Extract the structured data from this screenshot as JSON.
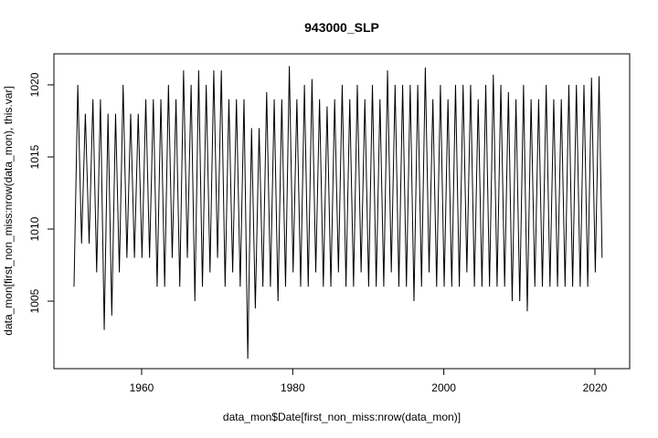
{
  "chart_data": {
    "type": "line",
    "title": "943000_SLP",
    "x_label": "data_mon$Date[first_non_miss:nrow(data_mon)]",
    "y_label": "data_mon[first_non_miss:nrow(data_mon), this.var]",
    "xlim": [
      1948.39,
      2024.6
    ],
    "ylim": [
      1000.32,
      1022.15
    ],
    "xticks": [
      1960,
      1980,
      2000,
      2020
    ],
    "yticks": [
      1005,
      1010,
      1015,
      1020
    ],
    "color": "#000000",
    "x": [
      1951.05,
      1951.55,
      1952.05,
      1952.55,
      1953.05,
      1953.55,
      1954.05,
      1954.55,
      1955.05,
      1955.55,
      1956.05,
      1956.55,
      1957.05,
      1957.55,
      1958.05,
      1958.55,
      1959.05,
      1959.55,
      1960.05,
      1960.55,
      1961.05,
      1961.55,
      1962.05,
      1962.55,
      1963.05,
      1963.55,
      1964.05,
      1964.55,
      1965.05,
      1965.55,
      1966.05,
      1966.55,
      1967.05,
      1967.55,
      1968.05,
      1968.55,
      1969.05,
      1969.55,
      1970.05,
      1970.55,
      1971.05,
      1971.55,
      1972.05,
      1972.55,
      1973.05,
      1973.55,
      1974.05,
      1974.55,
      1975.05,
      1975.55,
      1976.05,
      1976.55,
      1977.05,
      1977.55,
      1978.05,
      1978.55,
      1979.05,
      1979.55,
      1980.05,
      1980.55,
      1981.05,
      1981.55,
      1982.05,
      1982.55,
      1983.05,
      1983.55,
      1984.05,
      1984.55,
      1985.05,
      1985.55,
      1986.05,
      1986.55,
      1987.05,
      1987.55,
      1988.05,
      1988.55,
      1989.05,
      1989.55,
      1990.05,
      1990.55,
      1991.05,
      1991.55,
      1992.05,
      1992.55,
      1993.05,
      1993.55,
      1994.05,
      1994.55,
      1995.05,
      1995.55,
      1996.05,
      1996.55,
      1997.05,
      1997.55,
      1998.05,
      1998.55,
      1999.05,
      1999.55,
      2000.05,
      2000.55,
      2001.05,
      2001.55,
      2002.05,
      2002.55,
      2003.05,
      2003.55,
      2004.05,
      2004.55,
      2005.05,
      2005.55,
      2006.05,
      2006.55,
      2007.05,
      2007.55,
      2008.05,
      2008.55,
      2009.05,
      2009.55,
      2010.05,
      2010.55,
      2011.05,
      2011.55,
      2012.05,
      2012.55,
      2013.05,
      2013.55,
      2014.05,
      2014.55,
      2015.05,
      2015.55,
      2016.05,
      2016.55,
      2017.05,
      2017.55,
      2018.05,
      2018.55,
      2019.05,
      2019.55,
      2020.05,
      2020.55,
      2020.95
    ],
    "values": [
      1006,
      1020,
      1009,
      1018,
      1009,
      1019,
      1007,
      1019,
      1003,
      1018,
      1004,
      1018,
      1007,
      1020,
      1008,
      1018,
      1008,
      1018,
      1008,
      1019,
      1008,
      1019,
      1006,
      1019,
      1006,
      1020,
      1008,
      1019,
      1006,
      1021,
      1008,
      1020,
      1005,
      1021,
      1006,
      1020,
      1007,
      1021,
      1008,
      1021,
      1006,
      1019,
      1007,
      1019,
      1006,
      1019,
      1001,
      1017,
      1004.5,
      1017,
      1006,
      1019.5,
      1006,
      1019,
      1005,
      1019,
      1006,
      1021.3,
      1007,
      1019,
      1006,
      1020,
      1006,
      1020.4,
      1007,
      1019,
      1006,
      1018.5,
      1006,
      1019,
      1007,
      1020,
      1006,
      1019,
      1006,
      1020,
      1007,
      1019,
      1006,
      1020,
      1006,
      1019,
      1006,
      1021,
      1007,
      1020,
      1006,
      1020,
      1006,
      1020,
      1005,
      1020,
      1006,
      1021.2,
      1007,
      1019,
      1006,
      1020,
      1006,
      1019,
      1006,
      1020,
      1006,
      1020,
      1007,
      1020,
      1006,
      1019,
      1006,
      1020,
      1006,
      1020.7,
      1006,
      1020,
      1006,
      1019.5,
      1005,
      1019,
      1005,
      1020,
      1004.3,
      1019,
      1006,
      1019,
      1006,
      1020,
      1006,
      1019,
      1006,
      1019,
      1006,
      1020,
      1006,
      1020,
      1006,
      1020,
      1006,
      1020.5,
      1007,
      1020.6,
      1008
    ]
  }
}
